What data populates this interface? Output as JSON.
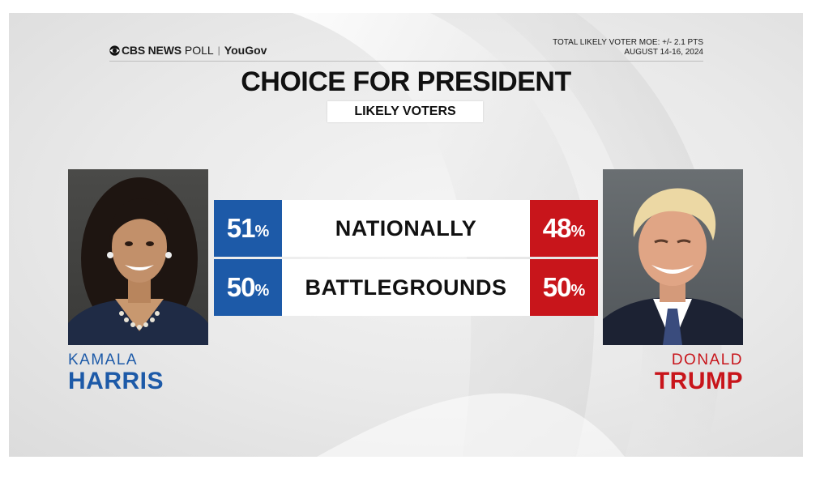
{
  "header": {
    "brand_cbs": "CBS NEWS",
    "brand_poll": "POLL",
    "brand_separator": "|",
    "brand_partner": "YouGov",
    "moe_line": "TOTAL LIKELY VOTER MOE: +/- 2.1 PTS",
    "date_line": "AUGUST 14-16, 2024"
  },
  "title": "CHOICE FOR PRESIDENT",
  "subtitle": "LIKELY VOTERS",
  "colors": {
    "democrat": "#1d5aa8",
    "republican": "#c8151b",
    "label_background": "#ffffff"
  },
  "candidates": {
    "left": {
      "first": "KAMALA",
      "last": "HARRIS",
      "portrait_icon": "harris-portrait"
    },
    "right": {
      "first": "DONALD",
      "last": "TRUMP",
      "portrait_icon": "trump-portrait"
    }
  },
  "chart_data": {
    "type": "table",
    "title": "CHOICE FOR PRESIDENT",
    "subtitle": "LIKELY VOTERS",
    "columns": [
      "HARRIS",
      "TRUMP"
    ],
    "unit": "%",
    "rows": [
      {
        "label": "NATIONALLY",
        "harris": "51",
        "trump": "48"
      },
      {
        "label": "BATTLEGROUNDS",
        "harris": "50",
        "trump": "50"
      }
    ]
  }
}
